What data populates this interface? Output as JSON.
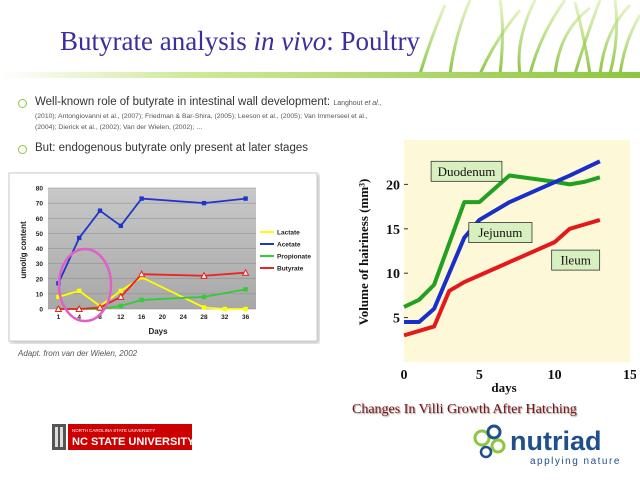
{
  "slide": {
    "title_main": "Butyrate analysis ",
    "title_italic": "in vivo",
    "title_end": ": Poultry",
    "bullet1": "Well-known role of butyrate in intestinal wall development:",
    "bullet1_ref_a": "Langhout ",
    "bullet1_ref_b": "et al.",
    "bullet1_ref_c": ",",
    "refs_line1": "(2010); Antongiovanni et al., (2007); Friedman & Bar-Shira, (2005); Leeson et al., (2005); Van Immerseel et al.,",
    "refs_line2": "(2004); Dierick et al., (2002); Van der Wielen, (2002); …",
    "bullet2": "But: endogenous butyrate only present at later stages",
    "adapt": "Adapt. from van der Wielen, 2002",
    "caption": "Changes In Villi Growth After Hatching",
    "ncsu_small": "NORTH CAROLINA STATE UNIVERSITY",
    "ncsu": "NC STATE UNIVERSITY",
    "brand": "nutriad",
    "tagline": "applying nature",
    "colors": {
      "title": "#3a2fa0",
      "accent": "#8dc63f",
      "caption": "#7a1111",
      "ncsu_red": "#cc0000"
    }
  },
  "chart_data": [
    {
      "type": "line",
      "ylabel": "umol/g content",
      "xlabel": "Days",
      "xticks": [
        1,
        4,
        8,
        12,
        16,
        20,
        24,
        28,
        32,
        36
      ],
      "yticks": [
        0,
        10,
        20,
        30,
        40,
        50,
        60,
        70,
        80
      ],
      "ylim": [
        0,
        80
      ],
      "grid": true,
      "legend": "right",
      "series": [
        {
          "name": "Lactate",
          "color": "#ffff00",
          "x": [
            1,
            4,
            8,
            12,
            16,
            28,
            32,
            36
          ],
          "y": [
            8,
            12,
            2,
            12,
            21,
            1,
            0,
            0
          ]
        },
        {
          "name": "Acetate",
          "color": "#1d36c8",
          "x": [
            1,
            4,
            8,
            12,
            16,
            28,
            36
          ],
          "y": [
            17,
            47,
            65,
            55,
            73,
            70,
            73
          ]
        },
        {
          "name": "Propionate",
          "color": "#33cc33",
          "x": [
            1,
            4,
            8,
            12,
            16,
            28,
            36
          ],
          "y": [
            0,
            0,
            0,
            2,
            6,
            8,
            13
          ]
        },
        {
          "name": "Butyrate",
          "color": "#ee2222",
          "x": [
            1,
            4,
            8,
            12,
            16,
            28,
            36
          ],
          "y": [
            0,
            0,
            1,
            8,
            23,
            22,
            24
          ]
        }
      ]
    },
    {
      "type": "line",
      "ylabel": "Volume of hairiness (mm³)",
      "xlabel": "days",
      "xticks": [
        0,
        5,
        10,
        15
      ],
      "yticks": [
        5,
        10,
        15,
        20
      ],
      "xlim": [
        0,
        15
      ],
      "ylim": [
        0,
        25
      ],
      "grid": false,
      "series": [
        {
          "name": "Duodenum",
          "color": "#22a022",
          "x": [
            0,
            1,
            2,
            4,
            5,
            7,
            10,
            11,
            12,
            13
          ],
          "y": [
            6.2,
            7,
            8.7,
            18,
            18,
            21,
            20.3,
            20,
            20.3,
            20.8
          ]
        },
        {
          "name": "Jejunum",
          "color": "#1a2ec8",
          "x": [
            0,
            1,
            2,
            4,
            5,
            7,
            9,
            11,
            13
          ],
          "y": [
            4.5,
            4.5,
            6,
            14,
            16,
            18,
            19.5,
            21,
            22.6
          ]
        },
        {
          "name": "Ileum",
          "color": "#e21a1a",
          "x": [
            0,
            1,
            2,
            3,
            4,
            6,
            8,
            10,
            11,
            12,
            13
          ],
          "y": [
            3,
            3.5,
            4,
            8,
            9,
            10.5,
            12,
            13.5,
            15,
            15.5,
            16
          ]
        }
      ]
    }
  ]
}
